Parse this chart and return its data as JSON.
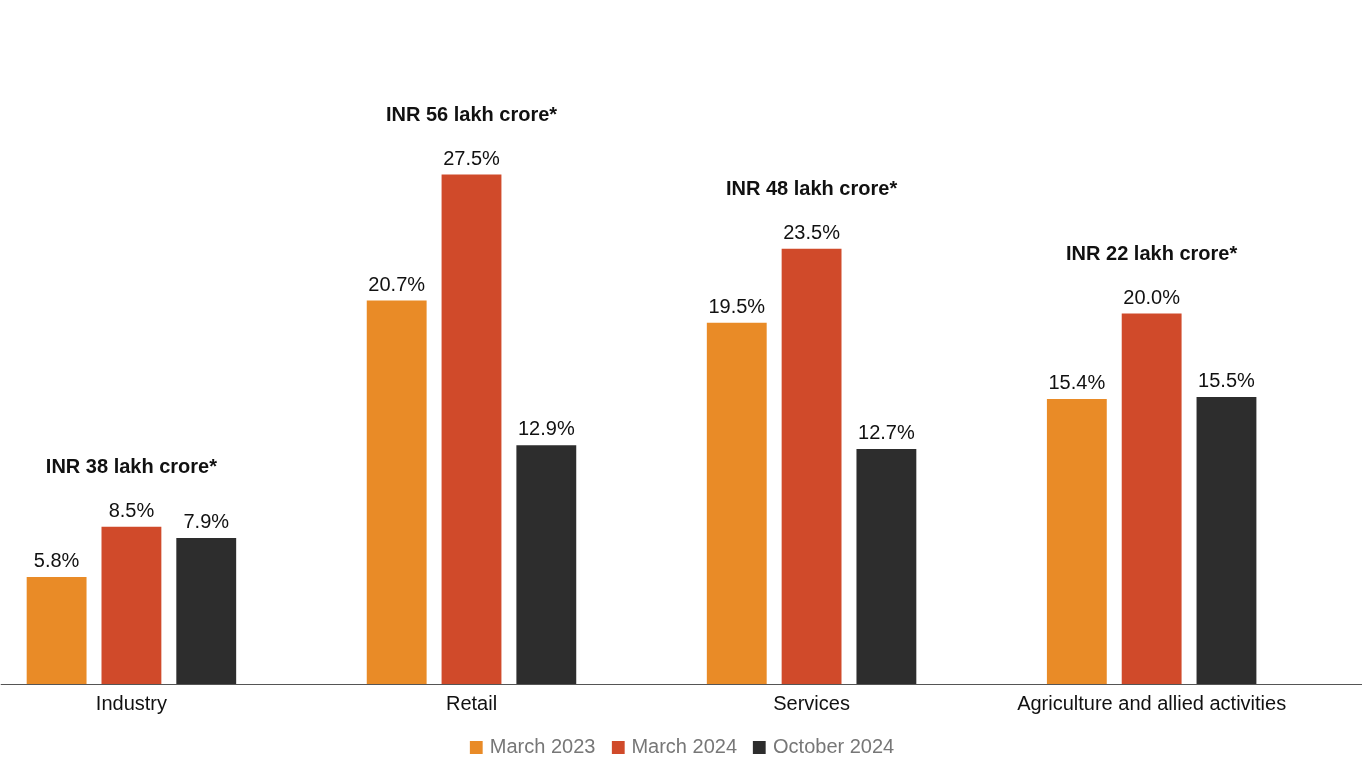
{
  "chart_data": {
    "type": "bar",
    "categories": [
      "Industry",
      "Retail",
      "Services",
      "Agriculture and allied activities"
    ],
    "series": [
      {
        "name": "March 2023",
        "color": "#e98b27",
        "values": [
          5.8,
          20.7,
          19.5,
          15.4
        ],
        "value_labels": [
          "5.8%",
          "20.7%",
          "19.5%",
          "15.4%"
        ]
      },
      {
        "name": "March 2024",
        "color": "#d04a2a",
        "values": [
          8.5,
          27.5,
          23.5,
          20.0
        ],
        "value_labels": [
          "8.5%",
          "27.5%",
          "23.5%",
          "20.0%"
        ]
      },
      {
        "name": "October 2024",
        "color": "#2d2d2d",
        "values": [
          7.9,
          12.9,
          12.7,
          15.5
        ],
        "value_labels": [
          "7.9%",
          "12.9%",
          "12.7%",
          "15.5%"
        ]
      }
    ],
    "annotations": [
      "INR 38 lakh crore*",
      "INR 56 lakh crore*",
      "INR 48 lakh crore*",
      "INR 22 lakh crore*"
    ],
    "grid": false,
    "legend": "bottom"
  }
}
